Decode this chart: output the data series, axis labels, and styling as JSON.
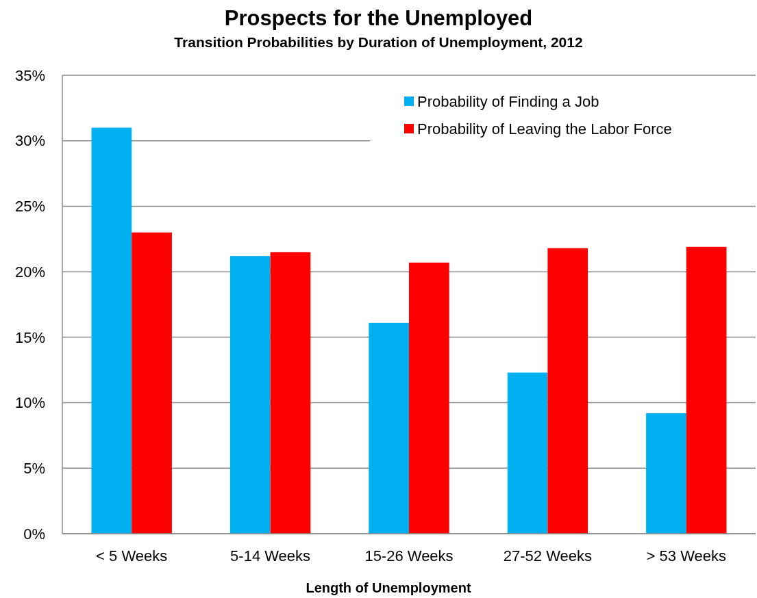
{
  "chart_data": {
    "type": "bar",
    "title": "Prospects for the Unemployed",
    "subtitle": "Transition Probabilities by Duration of Unemployment, 2012",
    "xlabel": "Length of Unemployment",
    "categories": [
      "< 5 Weeks",
      "5-14 Weeks",
      "15-26 Weeks",
      "27-52 Weeks",
      "> 53 Weeks"
    ],
    "series": [
      {
        "name": "Probability of Finding a Job",
        "color": "#00b0f0",
        "values": [
          31,
          21.2,
          16.1,
          12.3,
          9.2
        ]
      },
      {
        "name": "Probability of Leaving the Labor Force",
        "color": "#ff0000",
        "values": [
          23,
          21.5,
          20.7,
          21.8,
          21.9
        ]
      }
    ],
    "ylim": [
      0,
      35
    ],
    "yticks": [
      {
        "value": 0,
        "label": "0%"
      },
      {
        "value": 5,
        "label": "5%"
      },
      {
        "value": 10,
        "label": "10%"
      },
      {
        "value": 15,
        "label": "15%"
      },
      {
        "value": 20,
        "label": "20%"
      },
      {
        "value": 25,
        "label": "25%"
      },
      {
        "value": 30,
        "label": "30%"
      },
      {
        "value": 35,
        "label": "35%"
      }
    ],
    "grid": "y",
    "legend": "top right"
  }
}
